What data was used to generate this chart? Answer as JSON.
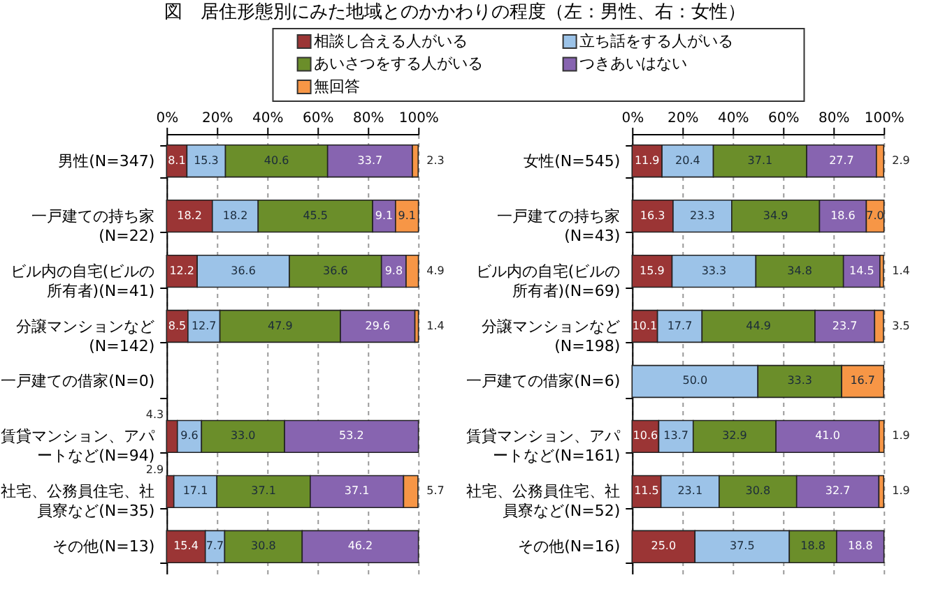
{
  "chart_data": [
    {
      "type": "bar",
      "title": "図　居住形態別にみた地域とのかかわりの程度（左：男性、右：女性）",
      "orientation": "horizontal",
      "stacked": true,
      "grid": "x",
      "legend": "top",
      "categories": [
        "男性(N=347)",
        "一戸建ての持ち家(N=22)",
        "ビル内の自宅(ビルの所有者)(N=41)",
        "分譲マンションなど(N=142)",
        "一戸建ての借家(N=0)",
        "賃貸マンション、アパートなど(N=94)",
        "社宅、公務員住宅、社員寮など(N=35)",
        "その他(N=13)"
      ],
      "xlim": [
        0,
        100
      ],
      "xticks": [
        {
          "value": 0,
          "label": "0%"
        },
        {
          "value": 20,
          "label": "20%"
        },
        {
          "value": 40,
          "label": "40%"
        },
        {
          "value": 60,
          "label": "60%"
        },
        {
          "value": 80,
          "label": "80%"
        },
        {
          "value": 100,
          "label": "100%"
        }
      ],
      "series": [
        {
          "name": "相談し合える人がいる",
          "color": "#9b3535",
          "values": [
            8.1,
            18.2,
            12.2,
            8.5,
            null,
            4.3,
            2.9,
            15.4
          ],
          "value_labels": [
            "8.1",
            "18.2",
            "12.2",
            "8.5",
            null,
            "4.3",
            "2.9",
            "15.4"
          ]
        },
        {
          "name": "立ち話をする人がいる",
          "color": "#9cc3e8",
          "values": [
            15.3,
            18.2,
            36.6,
            12.7,
            null,
            9.6,
            17.1,
            7.7
          ],
          "value_labels": [
            "15.3",
            "18.2",
            "36.6",
            "12.7",
            null,
            "9.6",
            "17.1",
            "7.7"
          ]
        },
        {
          "name": "あいさつをする人がいる",
          "color": "#6b8e2a",
          "values": [
            40.6,
            45.5,
            36.6,
            47.9,
            null,
            33.0,
            37.1,
            30.8
          ],
          "value_labels": [
            "40.6",
            "45.5",
            "36.6",
            "47.9",
            null,
            "33.0",
            "37.1",
            "30.8"
          ]
        },
        {
          "name": "つきあいはない",
          "color": "#8764b0",
          "values": [
            33.7,
            9.1,
            9.8,
            29.6,
            null,
            53.2,
            37.1,
            46.2
          ],
          "value_labels": [
            "33.7",
            "9.1",
            "9.8",
            "29.6",
            null,
            "53.2",
            "37.1",
            "46.2"
          ]
        },
        {
          "name": "無回答",
          "color": "#f79646",
          "values": [
            2.3,
            9.1,
            4.9,
            1.4,
            null,
            null,
            5.7,
            null
          ],
          "value_labels": [
            "2.3",
            "9.1",
            "4.9",
            "1.4",
            null,
            null,
            "5.7",
            null
          ]
        }
      ]
    },
    {
      "type": "bar",
      "orientation": "horizontal",
      "stacked": true,
      "grid": "x",
      "categories": [
        "女性(N=545)",
        "一戸建ての持ち家(N=43)",
        "ビル内の自宅(ビルの所有者)(N=69)",
        "分譲マンションなど(N=198)",
        "一戸建ての借家(N=6)",
        "賃貸マンション、アパートなど(N=161)",
        "社宅、公務員住宅、社員寮など(N=52)",
        "その他(N=16)"
      ],
      "xlim": [
        0,
        100
      ],
      "xticks": [
        {
          "value": 0,
          "label": "0%"
        },
        {
          "value": 20,
          "label": "20%"
        },
        {
          "value": 40,
          "label": "40%"
        },
        {
          "value": 60,
          "label": "60%"
        },
        {
          "value": 80,
          "label": "80%"
        },
        {
          "value": 100,
          "label": "100%"
        }
      ],
      "series": [
        {
          "color": "#9b3535",
          "values": [
            11.9,
            16.3,
            15.9,
            10.1,
            null,
            10.6,
            11.5,
            25.0
          ],
          "value_labels": [
            "11.9",
            "16.3",
            "15.9",
            "10.1",
            null,
            "10.6",
            "11.5",
            "25.0"
          ]
        },
        {
          "color": "#9cc3e8",
          "values": [
            20.4,
            23.3,
            33.3,
            17.7,
            50.0,
            13.7,
            23.1,
            37.5
          ],
          "value_labels": [
            "20.4",
            "23.3",
            "33.3",
            "17.7",
            "50.0",
            "13.7",
            "23.1",
            "37.5"
          ]
        },
        {
          "color": "#6b8e2a",
          "values": [
            37.1,
            34.9,
            34.8,
            44.9,
            33.3,
            32.9,
            30.8,
            18.8
          ],
          "value_labels": [
            "37.1",
            "34.9",
            "34.8",
            "44.9",
            "33.3",
            "32.9",
            "30.8",
            "18.8"
          ]
        },
        {
          "color": "#8764b0",
          "values": [
            27.7,
            18.6,
            14.5,
            23.7,
            null,
            41.0,
            32.7,
            18.8
          ],
          "value_labels": [
            "27.7",
            "18.6",
            "14.5",
            "23.7",
            null,
            "41.0",
            "32.7",
            "18.8"
          ]
        },
        {
          "color": "#f79646",
          "values": [
            2.9,
            7.0,
            1.4,
            3.5,
            16.7,
            1.9,
            1.9,
            null
          ],
          "value_labels": [
            "2.9",
            "7.0",
            "1.4",
            "3.5",
            "16.7",
            "1.9",
            "1.9",
            null
          ]
        }
      ]
    }
  ]
}
